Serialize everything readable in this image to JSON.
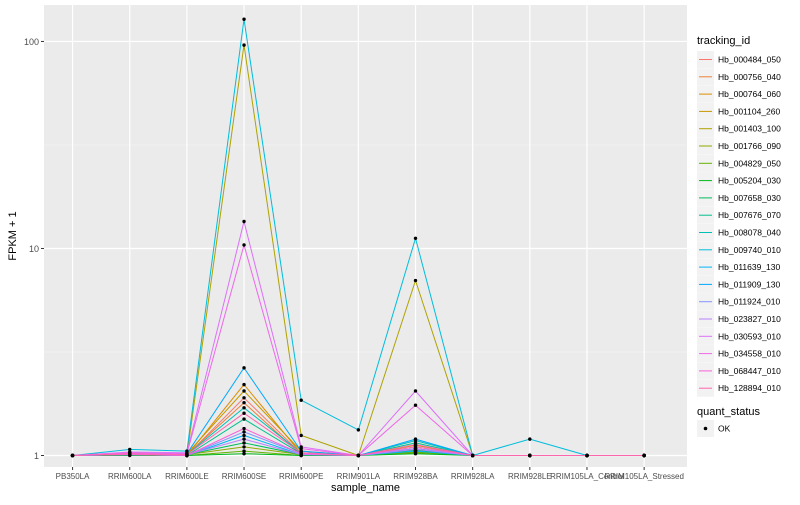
{
  "chart_data": {
    "type": "line",
    "xlabel": "sample_name",
    "ylabel": "FPKM + 1",
    "y_scale": "log10",
    "ylim": [
      0.88,
      150
    ],
    "y_ticks": [
      {
        "value": 1,
        "label": "1"
      },
      {
        "value": 10,
        "label": "10"
      },
      {
        "value": 100,
        "label": "100"
      }
    ],
    "categories": [
      "PB350LA",
      "RRIM600LA",
      "RRIM600LE",
      "RRIM600SE",
      "RRIM600PE",
      "RRIM901LA",
      "RRIM928BA",
      "RRIM928LA",
      "RRIM928LE",
      "RRIM105LA_Control",
      "RRIM105LA_Stressed"
    ],
    "legend_title": "tracking_id",
    "legend_position": "right",
    "grid": true,
    "series": [
      {
        "name": "Hb_000484_050",
        "color": "#F8766D",
        "values": [
          1,
          1.01,
          1.0,
          1.9,
          1.02,
          1,
          1.08,
          1,
          1,
          1,
          1
        ]
      },
      {
        "name": "Hb_000756_040",
        "color": "#EC8239",
        "values": [
          1,
          1.02,
          1.01,
          1.8,
          1.01,
          1,
          1.1,
          1,
          1,
          1,
          1
        ]
      },
      {
        "name": "Hb_000764_060",
        "color": "#DB8E00",
        "values": [
          1,
          1.01,
          1.0,
          2.2,
          1.02,
          1,
          1.05,
          1,
          1,
          1,
          1
        ]
      },
      {
        "name": "Hb_001104_260",
        "color": "#C79800",
        "values": [
          1,
          1.02,
          1.02,
          2.05,
          1.05,
          1,
          1.12,
          1,
          1,
          1,
          1
        ]
      },
      {
        "name": "Hb_001403_100",
        "color": "#AEA200",
        "values": [
          1,
          1.03,
          1.0,
          96,
          1.25,
          1,
          7.0,
          1,
          1,
          1,
          1
        ]
      },
      {
        "name": "Hb_001766_090",
        "color": "#8FAA00",
        "values": [
          1,
          1.01,
          1.01,
          1.1,
          1.01,
          1,
          1.03,
          1,
          1,
          1,
          1
        ]
      },
      {
        "name": "Hb_004829_050",
        "color": "#64B200",
        "values": [
          1,
          1.02,
          1.0,
          1.05,
          1.0,
          1,
          1.04,
          1,
          1,
          1,
          1
        ]
      },
      {
        "name": "Hb_005204_030",
        "color": "#00B81B",
        "values": [
          1,
          1.0,
          1.0,
          1.02,
          1.0,
          1,
          1.02,
          1,
          1,
          1,
          1
        ]
      },
      {
        "name": "Hb_007658_030",
        "color": "#00BD5C",
        "values": [
          1,
          1.01,
          1.01,
          1.15,
          1.01,
          1,
          1.06,
          1,
          1,
          1,
          1
        ]
      },
      {
        "name": "Hb_007676_070",
        "color": "#00C08E",
        "values": [
          1,
          1.02,
          1.0,
          1.5,
          1.02,
          1,
          1.15,
          1,
          1,
          1,
          1
        ]
      },
      {
        "name": "Hb_008078_040",
        "color": "#00C1B7",
        "values": [
          1,
          1.01,
          1.01,
          1.7,
          1.03,
          1,
          1.18,
          1,
          1,
          1,
          1
        ]
      },
      {
        "name": "Hb_009740_010",
        "color": "#00BDDC",
        "values": [
          1,
          1.07,
          1.05,
          128,
          1.85,
          1.33,
          11.2,
          1,
          1.2,
          1,
          1
        ]
      },
      {
        "name": "Hb_011639_130",
        "color": "#00B6F7",
        "values": [
          1,
          1.01,
          1.0,
          1.25,
          1.01,
          1,
          1.05,
          1,
          1,
          1,
          1
        ]
      },
      {
        "name": "Hb_011909_130",
        "color": "#00A9FF",
        "values": [
          1,
          1.03,
          1.02,
          2.65,
          1.05,
          1,
          1.2,
          1,
          1,
          1,
          1
        ]
      },
      {
        "name": "Hb_011924_010",
        "color": "#8494FF",
        "values": [
          1,
          1.01,
          1.0,
          1.3,
          1.02,
          1,
          1.08,
          1,
          1,
          1,
          1
        ]
      },
      {
        "name": "Hb_023827_010",
        "color": "#BB81FF",
        "values": [
          1,
          1.02,
          1.01,
          1.2,
          1.01,
          1,
          1.07,
          1,
          1,
          1,
          1
        ]
      },
      {
        "name": "Hb_030593_010",
        "color": "#DC71FA",
        "values": [
          1,
          1.04,
          1.03,
          13.5,
          1.1,
          1,
          2.05,
          1,
          1,
          1,
          1
        ]
      },
      {
        "name": "Hb_034558_010",
        "color": "#EF67EB",
        "values": [
          1,
          1.03,
          1.02,
          10.4,
          1.08,
          1,
          1.75,
          1,
          1,
          1,
          1
        ]
      },
      {
        "name": "Hb_068447_010",
        "color": "#FB61D7",
        "values": [
          1,
          1.01,
          1.0,
          1.35,
          1.02,
          1,
          1.1,
          1,
          1,
          1,
          1
        ]
      },
      {
        "name": "Hb_128894_010",
        "color": "#FF65AC",
        "values": [
          1,
          1.02,
          1.01,
          1.6,
          1.03,
          1,
          1.13,
          1,
          1,
          1,
          1
        ]
      }
    ],
    "shape_legend": {
      "title": "quant_status",
      "items": [
        {
          "label": "OK",
          "color": "#000000"
        }
      ]
    }
  }
}
